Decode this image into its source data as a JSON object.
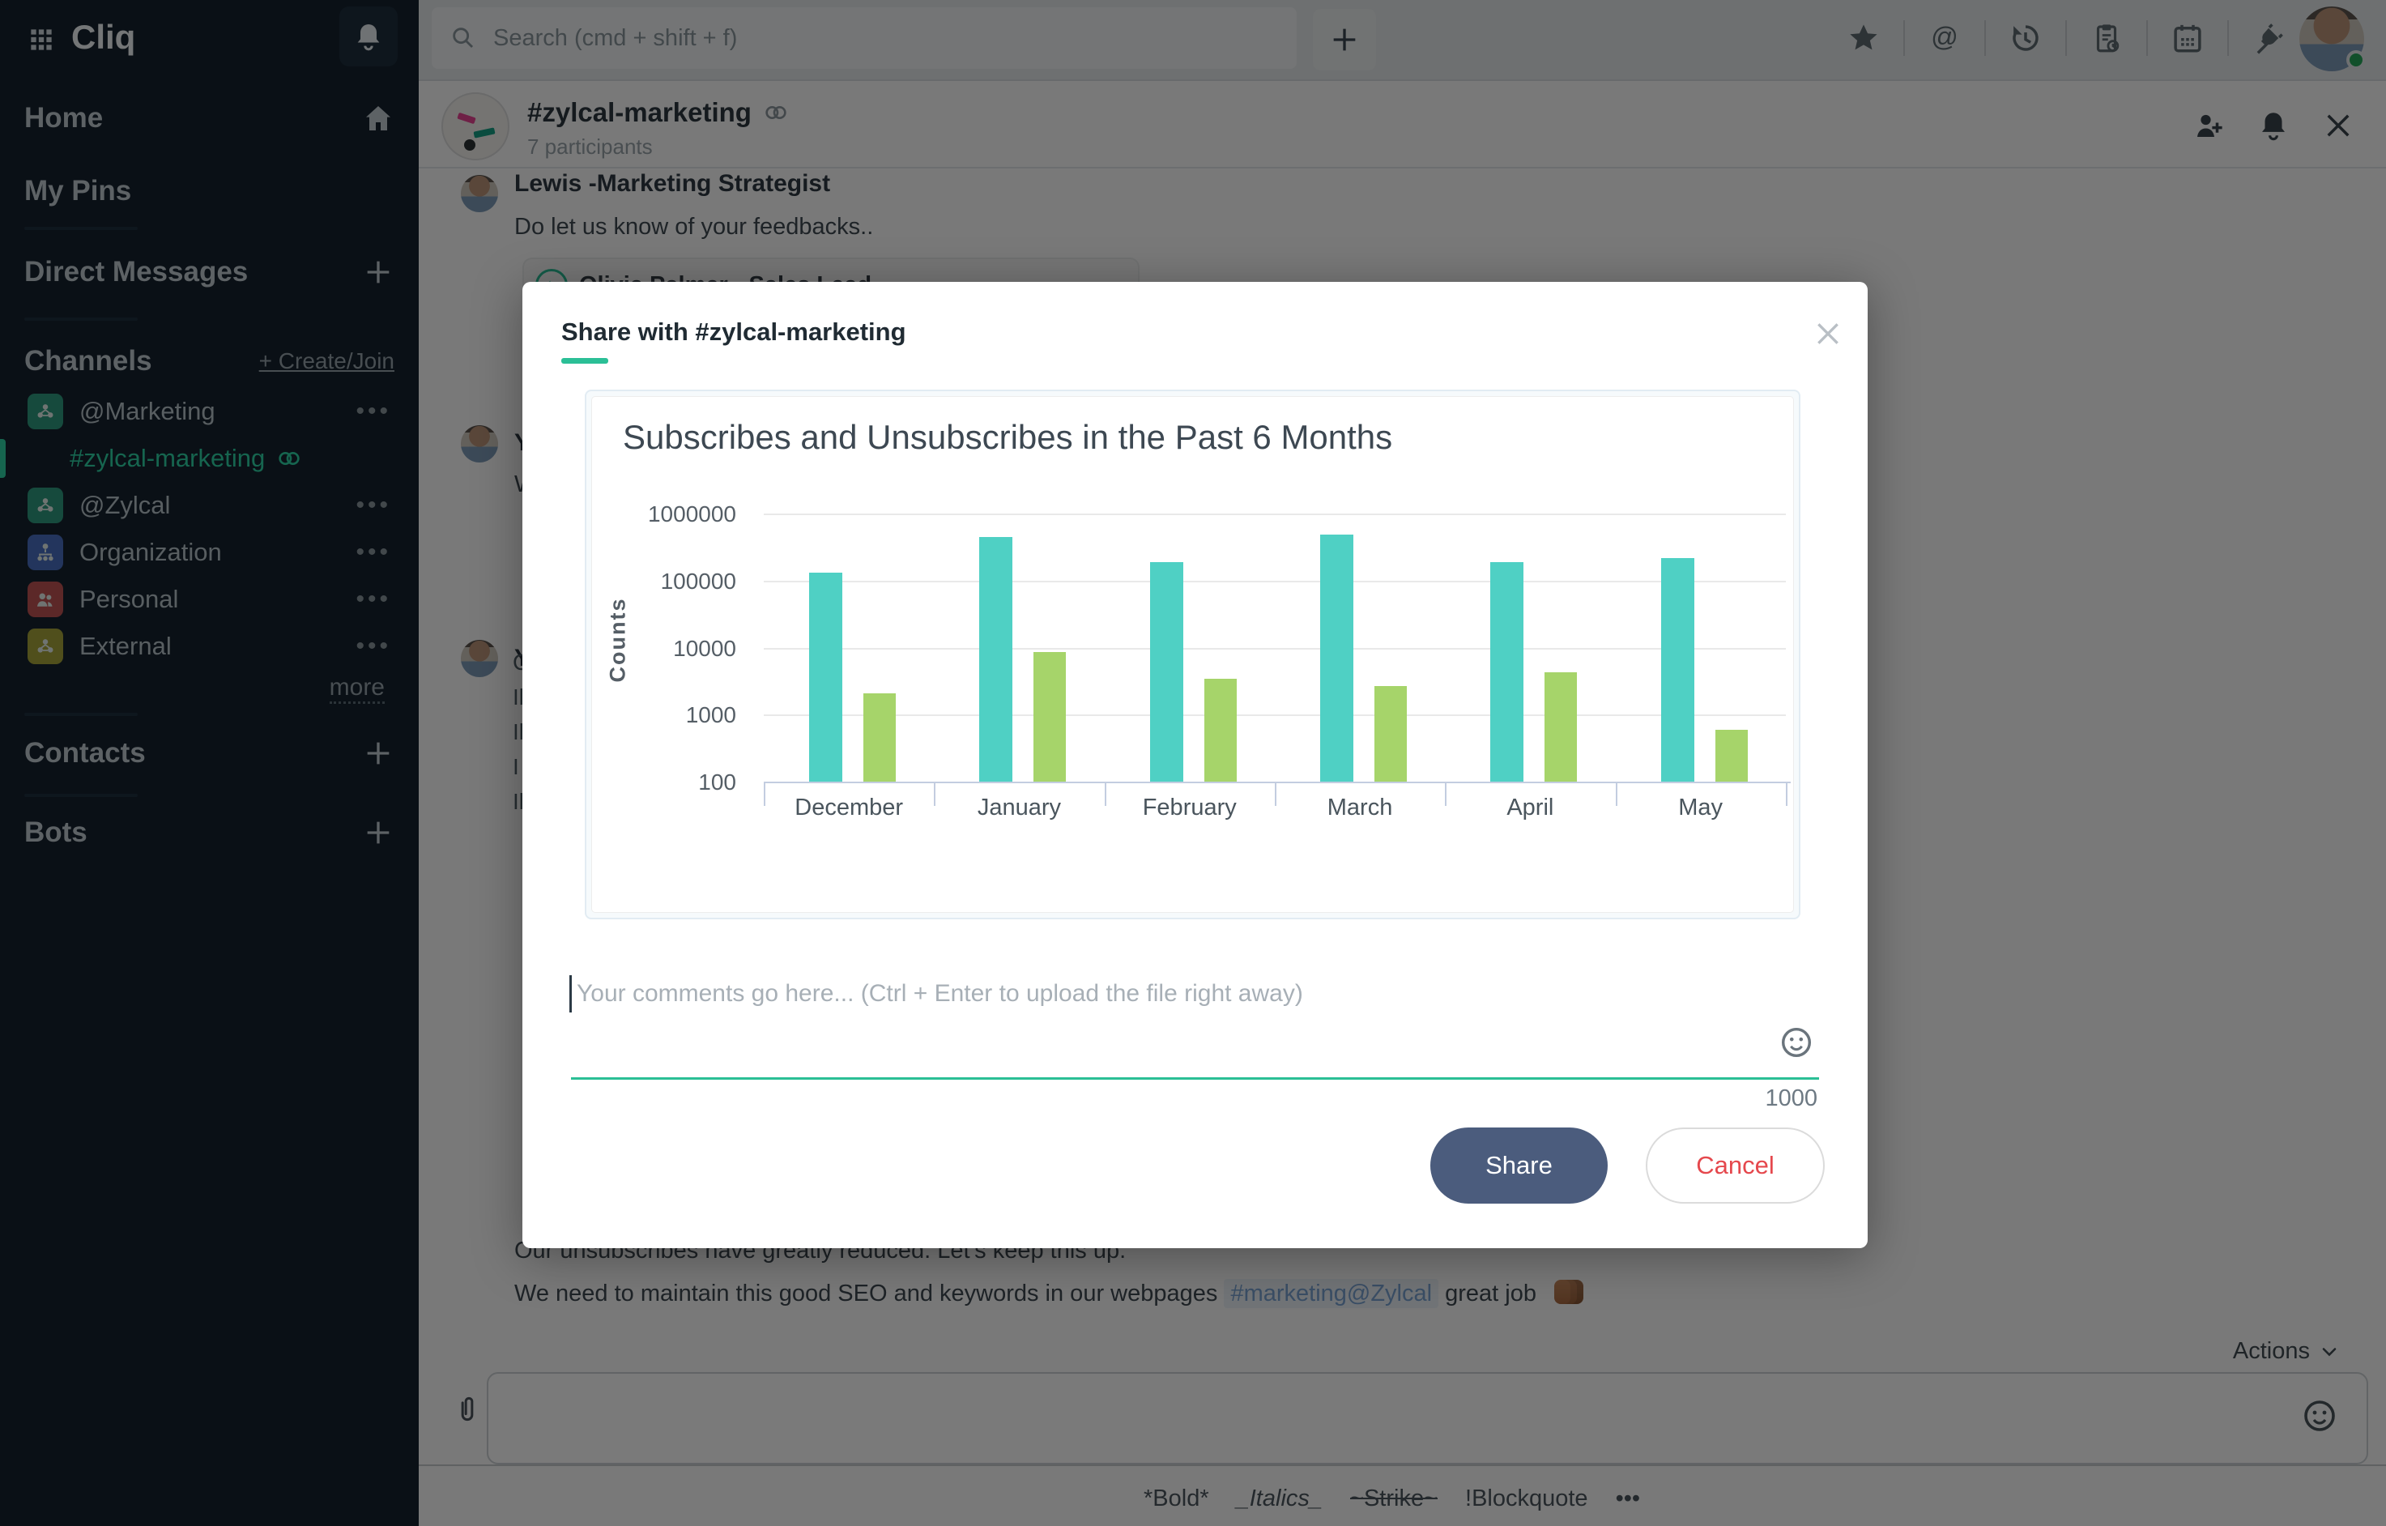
{
  "app": {
    "logo": "Cliq"
  },
  "topbar": {
    "search_placeholder": "Search (cmd + shift + f)",
    "icons": [
      "star",
      "mentions",
      "history",
      "tasks",
      "calendar",
      "integrations"
    ]
  },
  "sidebar": {
    "nav": [
      {
        "label": "Home",
        "icon": "home"
      },
      {
        "label": "My Pins"
      },
      {
        "label": "Direct Messages",
        "action_icon": "plus"
      }
    ],
    "channels_header": {
      "label": "Channels",
      "action": "+ Create/Join"
    },
    "channels": [
      {
        "label": "@Marketing",
        "icon": "members",
        "color": "#2f9c80",
        "selected": false
      },
      {
        "label": "#zylcal-marketing",
        "selected": true
      },
      {
        "label": "@Zylcal",
        "icon": "members",
        "color": "#2f9c80",
        "selected": false
      },
      {
        "label": "Organization",
        "icon": "org",
        "color": "#4a70c2",
        "selected": false
      },
      {
        "label": "Personal",
        "icon": "people",
        "color": "#c15555",
        "selected": false
      },
      {
        "label": "External",
        "icon": "members",
        "color": "#a8a63c",
        "selected": false
      }
    ],
    "more_label": "more",
    "sections": [
      {
        "label": "Contacts"
      },
      {
        "label": "Bots"
      }
    ]
  },
  "channel_header": {
    "title": "#zylcal-marketing",
    "subtitle": "7 participants"
  },
  "chat": {
    "messages": [
      {
        "author": "Lewis -Marketing Strategist",
        "text": "Do let us know of your feedbacks.."
      },
      {
        "reply_author": "Olivia Palmer - Sales Lead"
      }
    ],
    "partial_rows": [
      {
        "author": "Y"
      },
      {
        "text": "W"
      },
      {
        "author": "Y"
      }
    ],
    "clipped_lines": [
      "C",
      "Il",
      "Il",
      "I",
      "Il"
    ],
    "bottom_messages": {
      "line1": "Our unsubscribes have greatly reduced. Let's keep this up.",
      "line2_text": "We need to maintain this good SEO and keywords in our webpages",
      "line2_link": "#marketing@Zylcal",
      "line2_suffix": "great job",
      "line2_emoji": "fist"
    },
    "actions_label": "Actions",
    "composer_formatting": [
      "*Bold*",
      "_Italics_",
      "~Strike~",
      "!Blockquote",
      "•••"
    ]
  },
  "modal": {
    "title": "Share with #zylcal-marketing",
    "comment_placeholder": "Your comments go here... (Ctrl + Enter to upload the file right away)",
    "char_count": "1000",
    "share_label": "Share",
    "cancel_label": "Cancel"
  },
  "chart_data": {
    "type": "bar",
    "title": "Subscribes and Unsubscribes in the Past 6 Months",
    "ylabel": "Counts",
    "xlabel": "",
    "y_scale": "log",
    "y_ticks": [
      100,
      1000,
      10000,
      100000,
      1000000
    ],
    "ylim": [
      100,
      1000000
    ],
    "grid": true,
    "legend": "none",
    "categories": [
      "December",
      "January",
      "February",
      "March",
      "April",
      "May"
    ],
    "series": [
      {
        "name": "Subscribes",
        "color": "#4fd0c4",
        "values": [
          130000,
          450000,
          190000,
          480000,
          190000,
          215000
        ]
      },
      {
        "name": "Unsubscribes",
        "color": "#a6d46a",
        "values": [
          2100,
          8500,
          3400,
          2700,
          4300,
          600
        ]
      }
    ]
  },
  "colors": {
    "accent_green": "#2bbf96",
    "sidebar_bg": "#15222e",
    "share_button": "#4b5c7d",
    "cancel_text": "#e5484d",
    "link_blue": "#7aa3d4"
  }
}
